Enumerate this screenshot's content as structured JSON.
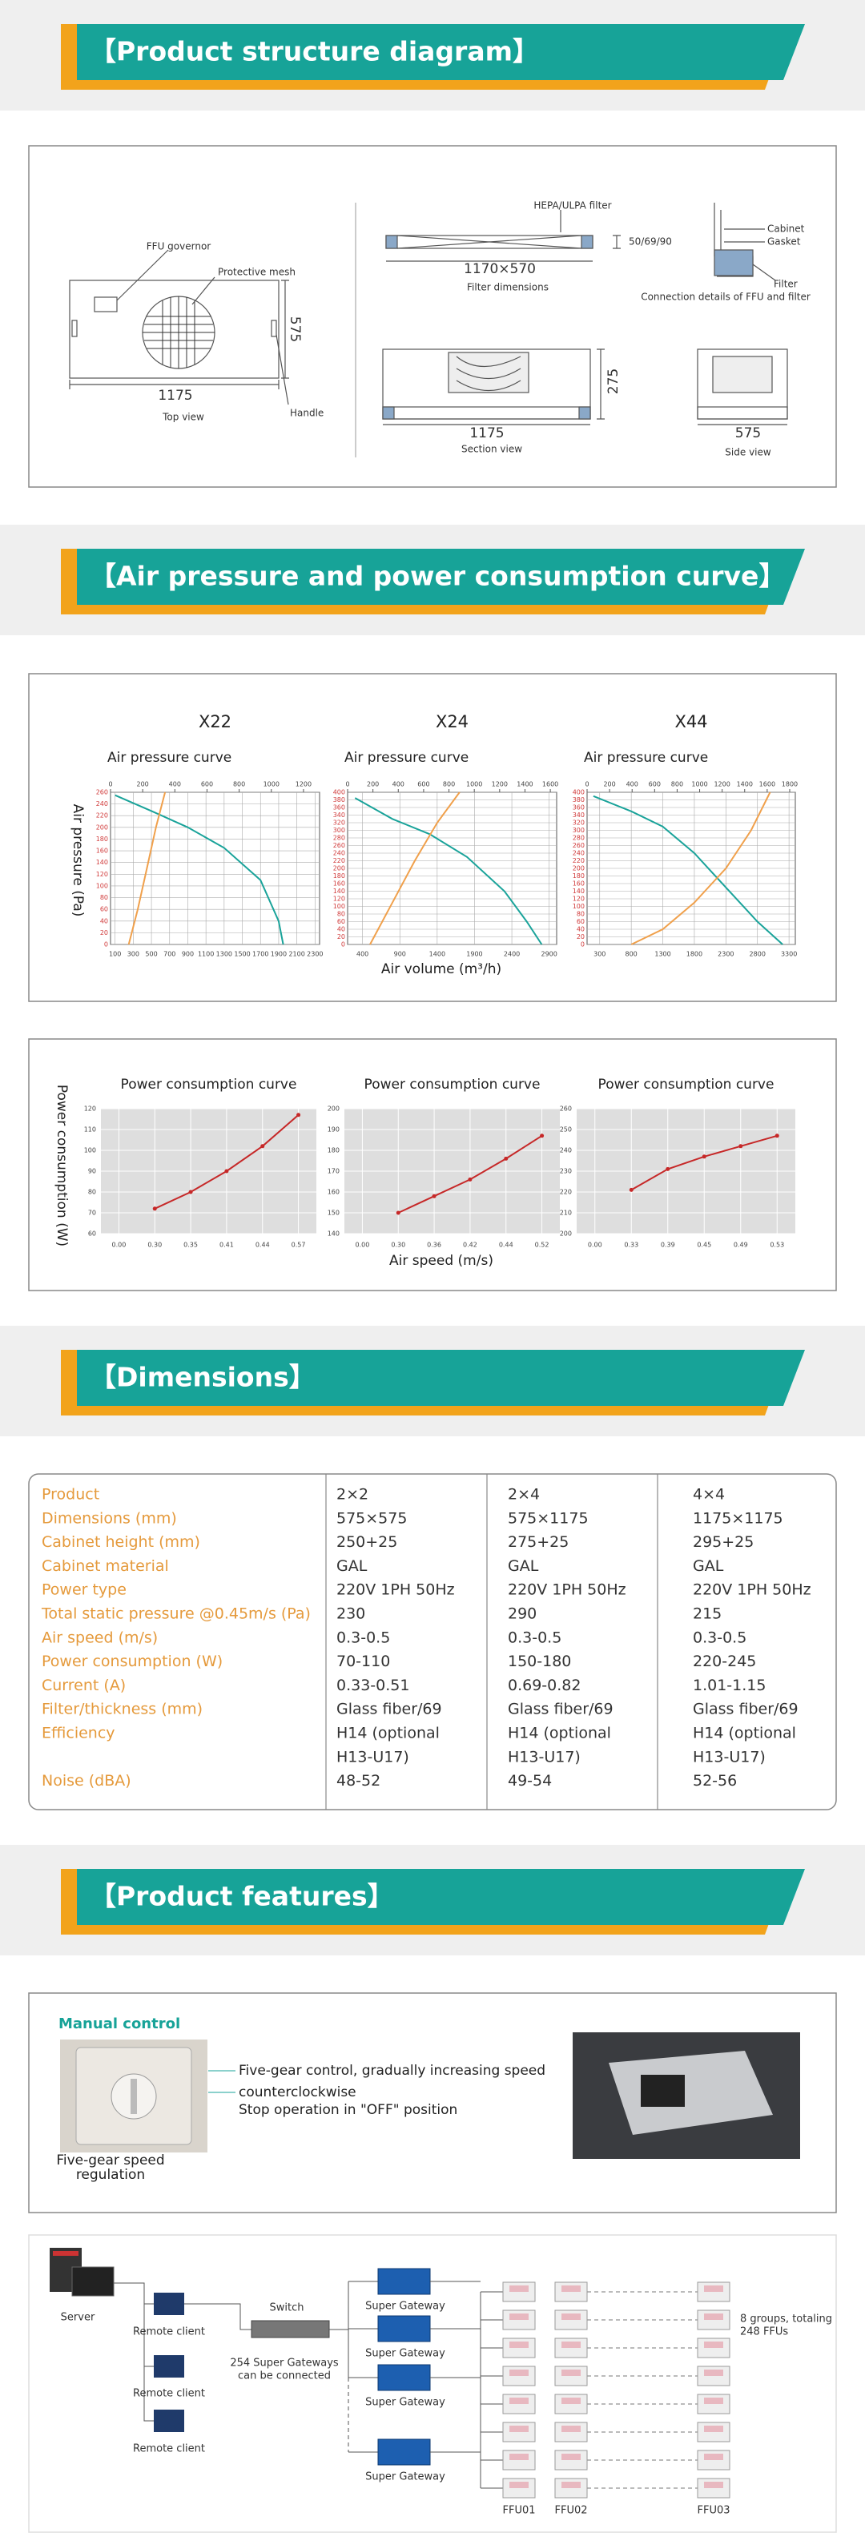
{
  "headings": [
    "【Product structure diagram】",
    "【Air pressure and power consumption curve】",
    "【Dimensions】",
    "【Product features】"
  ],
  "structure": {
    "top_view": {
      "governor": "FFU governor",
      "mesh": "Protective mesh",
      "depth": "575",
      "width": "1175",
      "caption": "Top view",
      "handle": "Handle"
    },
    "filter": {
      "name": "HEPA/ULPA filter",
      "thickness": "50/69/90",
      "size": "1170×570",
      "caption": "Filter dimensions"
    },
    "connection": {
      "cabinet": "Cabinet",
      "gasket": "Gasket",
      "filter": "Filter",
      "caption": "Connection details of FFU and filter"
    },
    "section_view": {
      "height": "275",
      "width": "1175",
      "caption": "Section view"
    },
    "side_view": {
      "width": "575",
      "caption": "Side view"
    }
  },
  "air_pressure": {
    "y_label": "Air pressure (Pa)",
    "x_label": "Air volume (m³/h)",
    "charts": [
      {
        "type": "line",
        "title": "X22",
        "subtitle": "Air pressure curve",
        "xlim": [
          50,
          2350
        ],
        "xticks": [
          100,
          300,
          500,
          700,
          900,
          1100,
          1300,
          1500,
          1700,
          1900,
          2100,
          2300
        ],
        "x2lim": [
          0,
          1300
        ],
        "x2ticks": [
          0,
          200,
          400,
          600,
          800,
          1000,
          1200
        ],
        "ylim": [
          0,
          260
        ],
        "yticks": [
          0,
          20,
          40,
          60,
          80,
          100,
          120,
          140,
          160,
          180,
          200,
          220,
          240,
          260
        ],
        "series": [
          {
            "color": "#1aa39a",
            "x": [
              100,
              500,
              900,
              1300,
              1700,
              1900,
              1950
            ],
            "values": [
              255,
              228,
              200,
              165,
              110,
              40,
              0
            ]
          },
          {
            "color": "#f0a04b",
            "x": [
              250,
              350,
              450,
              550,
              650
            ],
            "values": [
              0,
              60,
              130,
              200,
              260
            ]
          }
        ]
      },
      {
        "type": "line",
        "title": "X24",
        "subtitle": "Air pressure curve",
        "xlim": [
          200,
          3000
        ],
        "xticks": [
          400,
          900,
          1400,
          1900,
          2400,
          2900
        ],
        "x2lim": [
          0,
          1650
        ],
        "x2ticks": [
          0,
          200,
          400,
          600,
          800,
          1000,
          1200,
          1400,
          1600
        ],
        "ylim": [
          0,
          400
        ],
        "yticks": [
          0,
          20,
          40,
          60,
          80,
          100,
          120,
          140,
          160,
          180,
          200,
          220,
          240,
          260,
          280,
          300,
          320,
          340,
          360,
          380,
          400
        ],
        "series": [
          {
            "color": "#1aa39a",
            "x": [
              300,
              800,
              1300,
              1800,
              2300,
              2600,
              2800
            ],
            "values": [
              385,
              330,
              290,
              230,
              140,
              60,
              0
            ]
          },
          {
            "color": "#f0a04b",
            "x": [
              500,
              800,
              1100,
              1400,
              1700
            ],
            "values": [
              0,
              110,
              220,
              320,
              400
            ]
          }
        ]
      },
      {
        "type": "line",
        "title": "X44",
        "subtitle": "Air pressure curve",
        "xlim": [
          100,
          3400
        ],
        "xticks": [
          300,
          800,
          1300,
          1800,
          2300,
          2800,
          3300
        ],
        "x2lim": [
          0,
          1850
        ],
        "x2ticks": [
          0,
          200,
          400,
          600,
          800,
          1000,
          1200,
          1400,
          1600,
          1800
        ],
        "ylim": [
          0,
          400
        ],
        "yticks": [
          0,
          20,
          40,
          60,
          80,
          100,
          120,
          140,
          160,
          180,
          200,
          220,
          240,
          260,
          280,
          300,
          320,
          340,
          360,
          380,
          400
        ],
        "series": [
          {
            "color": "#1aa39a",
            "x": [
              200,
              800,
              1300,
              1800,
              2300,
              2800,
              3200
            ],
            "values": [
              390,
              350,
              310,
              240,
              150,
              60,
              0
            ]
          },
          {
            "color": "#f0a04b",
            "x": [
              800,
              1300,
              1800,
              2300,
              2700,
              3000
            ],
            "values": [
              0,
              40,
              110,
              200,
              300,
              400
            ]
          }
        ]
      }
    ]
  },
  "power": {
    "y_label": "Power consumption (W)",
    "x_label": "Air speed (m/s)",
    "charts": [
      {
        "type": "line",
        "subtitle": "Power consumption curve",
        "categories": [
          "0.00",
          "0.30",
          "0.35",
          "0.41",
          "0.44",
          "0.57"
        ],
        "values": [
          null,
          72,
          80,
          90,
          102,
          117
        ],
        "color": "#c62828",
        "ylim": [
          60,
          120
        ],
        "yticks": [
          60,
          70,
          80,
          90,
          100,
          110,
          120
        ]
      },
      {
        "type": "line",
        "subtitle": "Power consumption curve",
        "categories": [
          "0.00",
          "0.30",
          "0.36",
          "0.42",
          "0.44",
          "0.52"
        ],
        "values": [
          null,
          150,
          158,
          166,
          176,
          187
        ],
        "color": "#c62828",
        "ylim": [
          140,
          200
        ],
        "yticks": [
          140,
          150,
          160,
          170,
          180,
          190,
          200
        ]
      },
      {
        "type": "line",
        "subtitle": "Power consumption curve",
        "categories": [
          "0.00",
          "0.33",
          "0.39",
          "0.45",
          "0.49",
          "0.53"
        ],
        "values": [
          null,
          221,
          231,
          237,
          242,
          247
        ],
        "color": "#c62828",
        "ylim": [
          200,
          260
        ],
        "yticks": [
          200,
          210,
          220,
          230,
          240,
          250,
          260
        ]
      }
    ]
  },
  "dimensions": {
    "rows": [
      [
        "Product",
        "2×2",
        "2×4",
        "4×4"
      ],
      [
        "Dimensions (mm)",
        "575×575",
        "575×1175",
        "1175×1175"
      ],
      [
        "Cabinet height (mm)",
        "250+25",
        "275+25",
        "295+25"
      ],
      [
        "Cabinet material",
        "GAL",
        "GAL",
        "GAL"
      ],
      [
        "Power type",
        "220V 1PH 50Hz",
        "220V 1PH 50Hz",
        "220V 1PH 50Hz"
      ],
      [
        "Total static pressure @0.45m/s (Pa)",
        "230",
        "290",
        "215"
      ],
      [
        "Air speed (m/s)",
        "0.3-0.5",
        "0.3-0.5",
        "0.3-0.5"
      ],
      [
        "Power consumption (W)",
        "70-110",
        "150-180",
        "220-245"
      ],
      [
        "Current (A)",
        "0.33-0.51",
        "0.69-0.82",
        "1.01-1.15"
      ],
      [
        "Filter/thickness (mm)",
        "Glass fiber/69",
        "Glass fiber/69",
        "Glass fiber/69"
      ],
      [
        "Efficiency",
        [
          "H14 (optional",
          "H13-U17)"
        ],
        [
          "H14 (optional",
          "H13-U17)"
        ],
        [
          "H14 (optional",
          "H13-U17)"
        ]
      ],
      [
        "Noise (dBA)",
        "48-52",
        "49-54",
        "52-56"
      ]
    ]
  },
  "features": {
    "title": "Manual control",
    "lines": [
      "Five-gear control, gradually increasing speed",
      "counterclockwise",
      "Stop operation in \"OFF\" position"
    ],
    "caption": [
      "Five-gear speed",
      "regulation"
    ]
  },
  "network": {
    "server": "Server",
    "clients": [
      "Remote client",
      "Remote client",
      "Remote client"
    ],
    "switch": "Switch",
    "note": [
      "254 Super Gateways",
      "can be connected"
    ],
    "gateways": [
      "Super Gateway",
      "Super Gateway",
      "Super Gateway",
      "Super Gateway"
    ],
    "summary": [
      "8 groups, totaling",
      "248 FFUs"
    ],
    "ffu_labels": [
      "FFU01",
      "FFU02",
      "FFU03"
    ]
  }
}
